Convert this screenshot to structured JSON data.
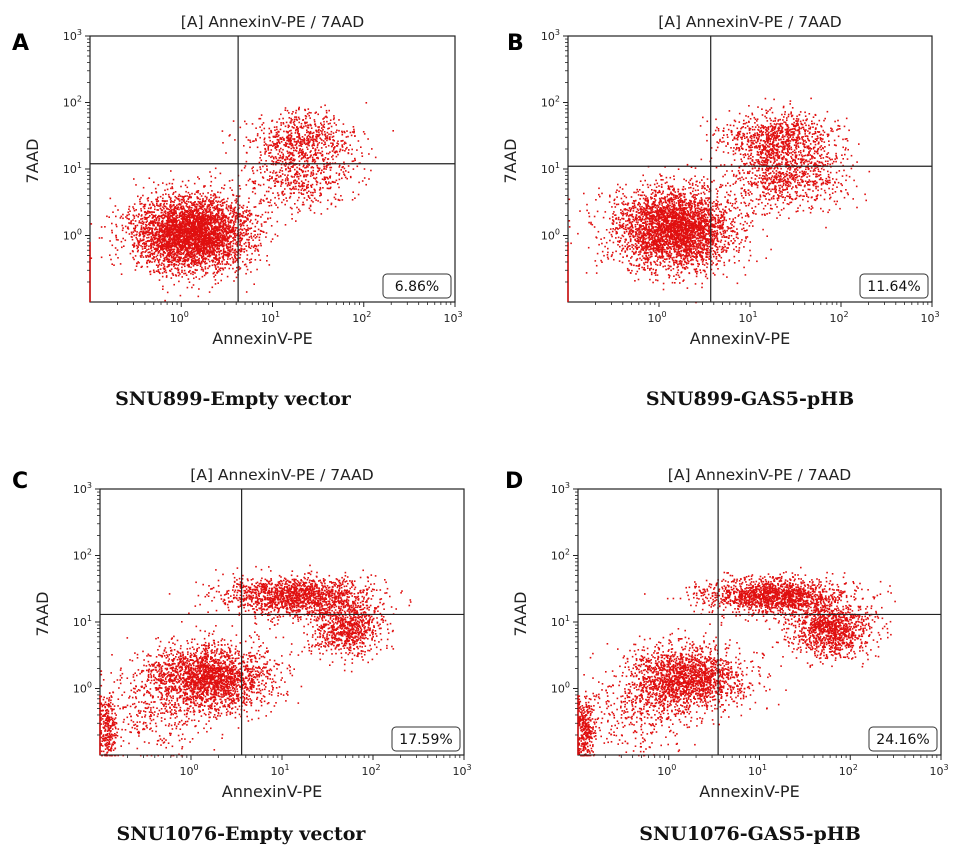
{
  "panels": [
    {
      "letter": "A",
      "title": "[A] AnnexinV-PE / 7AAD",
      "xlabel": "AnnexinV-PE",
      "ylabel": "7AAD",
      "percent": "6.86%",
      "caption": "SNU899-Empty vector"
    },
    {
      "letter": "B",
      "title": "[A] AnnexinV-PE / 7AAD",
      "xlabel": "AnnexinV-PE",
      "ylabel": "7AAD",
      "percent": "11.64%",
      "caption": "SNU899-GAS5-pHB"
    },
    {
      "letter": "C",
      "title": "[A] AnnexinV-PE / 7AAD",
      "xlabel": "AnnexinV-PE",
      "ylabel": "7AAD",
      "percent": "17.59%",
      "caption": "SNU1076-Empty vector"
    },
    {
      "letter": "D",
      "title": "[A] AnnexinV-PE / 7AAD",
      "xlabel": "AnnexinV-PE",
      "ylabel": "7AAD",
      "percent": "24.16%",
      "caption": "SNU1076-GAS5-pHB"
    }
  ],
  "chart_data": [
    {
      "type": "scatter",
      "title": "[A] AnnexinV-PE / 7AAD",
      "xlabel": "AnnexinV-PE",
      "ylabel": "7AAD",
      "xscale": "log",
      "yscale": "log",
      "xlim": [
        0.1,
        1000
      ],
      "ylim": [
        0.1,
        1000
      ],
      "x_ticks": [
        "10^0",
        "10^1",
        "10^2",
        "10^3"
      ],
      "y_ticks": [
        "10^0",
        "10^1",
        "10^2",
        "10^3"
      ],
      "quadrant_gate": {
        "x": 4.2,
        "y": 12
      },
      "annotation": "6.86%",
      "point_color": "#e01010",
      "clusters": [
        {
          "center": [
            1.3,
            1.1
          ],
          "spread_log": [
            0.32,
            0.28
          ],
          "weight": 0.78
        },
        {
          "center": [
            22,
            28
          ],
          "spread_log": [
            0.28,
            0.2
          ],
          "weight": 0.12
        },
        {
          "center": [
            20,
            8
          ],
          "spread_log": [
            0.3,
            0.25
          ],
          "weight": 0.1
        }
      ]
    },
    {
      "type": "scatter",
      "title": "[A] AnnexinV-PE / 7AAD",
      "xlabel": "AnnexinV-PE",
      "ylabel": "7AAD",
      "xscale": "log",
      "yscale": "log",
      "xlim": [
        0.1,
        1000
      ],
      "ylim": [
        0.1,
        1000
      ],
      "x_ticks": [
        "10^0",
        "10^1",
        "10^2",
        "10^3"
      ],
      "y_ticks": [
        "10^0",
        "10^1",
        "10^2",
        "10^3"
      ],
      "quadrant_gate": {
        "x": 3.7,
        "y": 11
      },
      "annotation": "11.64%",
      "point_color": "#e01010",
      "clusters": [
        {
          "center": [
            1.5,
            1.3
          ],
          "spread_log": [
            0.33,
            0.3
          ],
          "weight": 0.68
        },
        {
          "center": [
            20,
            30
          ],
          "spread_log": [
            0.3,
            0.2
          ],
          "weight": 0.16
        },
        {
          "center": [
            25,
            8
          ],
          "spread_log": [
            0.32,
            0.25
          ],
          "weight": 0.16
        }
      ]
    },
    {
      "type": "scatter",
      "title": "[A] AnnexinV-PE / 7AAD",
      "xlabel": "AnnexinV-PE",
      "ylabel": "7AAD",
      "xscale": "log",
      "yscale": "log",
      "xlim": [
        0.1,
        1000
      ],
      "ylim": [
        0.1,
        1000
      ],
      "x_ticks": [
        "10^0",
        "10^1",
        "10^2",
        "10^3"
      ],
      "y_ticks": [
        "10^0",
        "10^1",
        "10^2",
        "10^3"
      ],
      "quadrant_gate": {
        "x": 3.6,
        "y": 13
      },
      "annotation": "17.59%",
      "point_color": "#e01010",
      "clusters": [
        {
          "center": [
            1.5,
            1.5
          ],
          "spread_log": [
            0.35,
            0.25
          ],
          "weight": 0.45
        },
        {
          "center": [
            15,
            25
          ],
          "spread_log": [
            0.4,
            0.15
          ],
          "weight": 0.3
        },
        {
          "center": [
            50,
            8
          ],
          "spread_log": [
            0.2,
            0.2
          ],
          "weight": 0.15
        },
        {
          "center": [
            0.12,
            0.25
          ],
          "spread_log": [
            0.05,
            0.25
          ],
          "weight": 0.05
        },
        {
          "center": [
            0.4,
            0.4
          ],
          "spread_log": [
            0.3,
            0.3
          ],
          "weight": 0.05
        }
      ]
    },
    {
      "type": "scatter",
      "title": "[A] AnnexinV-PE / 7AAD",
      "xlabel": "AnnexinV-PE",
      "ylabel": "7AAD",
      "xscale": "log",
      "yscale": "log",
      "xlim": [
        0.1,
        1000
      ],
      "ylim": [
        0.1,
        1000
      ],
      "x_ticks": [
        "10^0",
        "10^1",
        "10^2",
        "10^3"
      ],
      "y_ticks": [
        "10^0",
        "10^1",
        "10^2",
        "10^3"
      ],
      "quadrant_gate": {
        "x": 3.5,
        "y": 13
      },
      "annotation": "24.16%",
      "point_color": "#e01010",
      "clusters": [
        {
          "center": [
            1.5,
            1.4
          ],
          "spread_log": [
            0.33,
            0.25
          ],
          "weight": 0.38
        },
        {
          "center": [
            15,
            25
          ],
          "spread_log": [
            0.4,
            0.13
          ],
          "weight": 0.3
        },
        {
          "center": [
            60,
            8
          ],
          "spread_log": [
            0.22,
            0.2
          ],
          "weight": 0.22
        },
        {
          "center": [
            0.12,
            0.25
          ],
          "spread_log": [
            0.05,
            0.25
          ],
          "weight": 0.05
        },
        {
          "center": [
            0.4,
            0.4
          ],
          "spread_log": [
            0.3,
            0.3
          ],
          "weight": 0.05
        }
      ]
    }
  ]
}
